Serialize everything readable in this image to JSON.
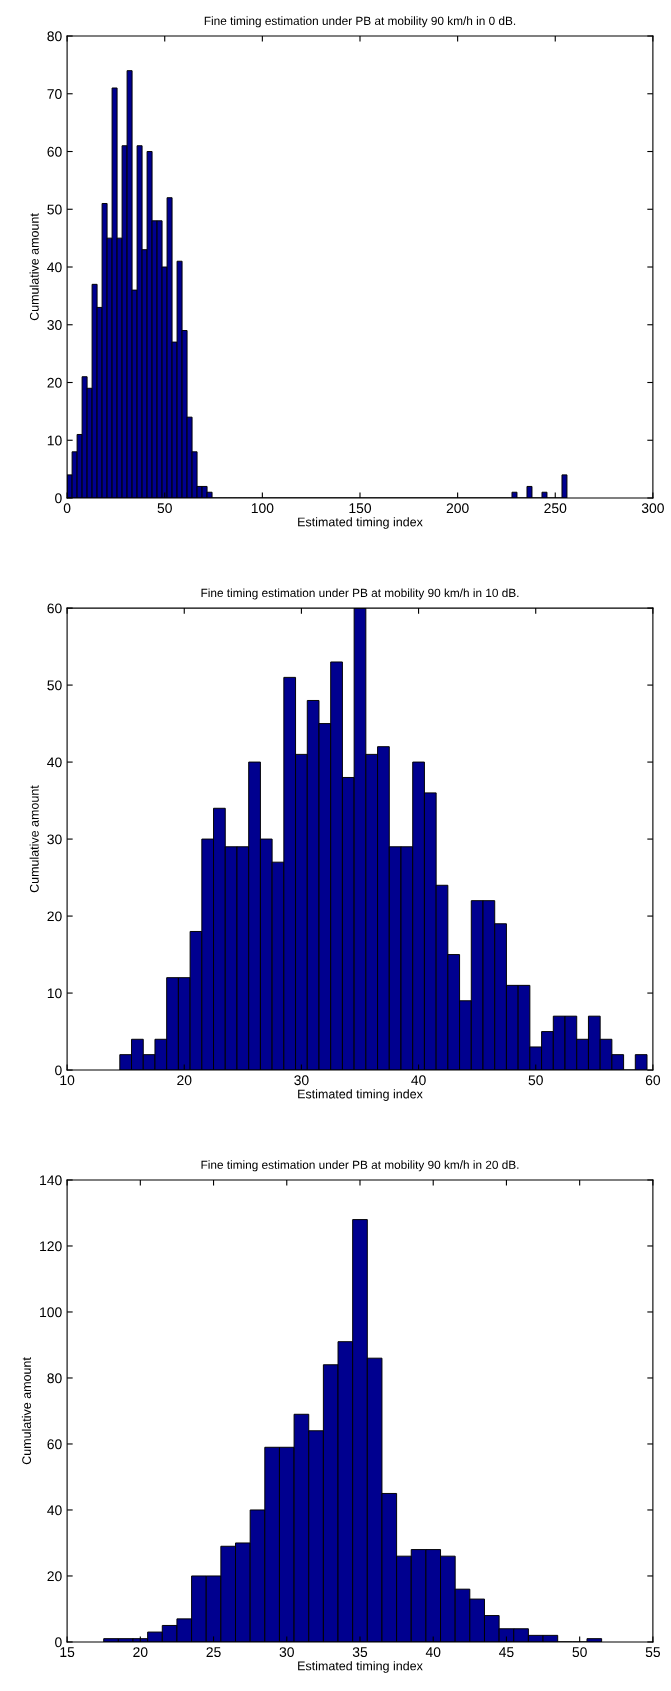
{
  "chart_data": [
    {
      "type": "histogram",
      "title": "Fine timing estimation under PB at mobility 90 km/h in 0 dB.",
      "xlabel": "Estimated timing index",
      "ylabel": "Cumulative amount",
      "color": "#00008f",
      "grid": false,
      "xlim": [
        0,
        300
      ],
      "xticks": [
        0,
        50,
        100,
        150,
        200,
        250,
        300
      ],
      "ylim": [
        0,
        80
      ],
      "yticks": [
        0,
        10,
        20,
        30,
        40,
        50,
        60,
        70,
        80
      ],
      "bins": [
        0,
        2.56,
        5.12,
        7.68,
        10.24,
        12.8,
        15.36,
        17.92,
        20.48,
        23.04,
        25.6,
        28.16,
        30.72,
        33.28,
        35.84,
        38.4,
        40.96,
        43.52,
        46.08,
        48.64,
        51.2,
        53.76,
        56.32,
        58.88,
        61.44,
        64,
        66.56,
        69.12,
        71.68,
        74.24,
        76.8,
        79.36,
        81.92,
        84.48,
        87.04,
        89.6,
        92.16,
        94.72,
        97.28,
        99.84,
        102.4,
        104.96,
        107.52,
        110.08,
        112.64,
        115.2,
        117.76,
        120.32,
        122.88,
        125.44,
        128,
        130.56,
        133.12,
        135.68,
        138.24,
        140.8,
        143.36,
        145.92,
        148.48,
        151.04,
        153.6,
        156.16,
        158.72,
        161.28,
        163.84,
        166.4,
        168.96,
        171.52,
        174.08,
        176.64,
        179.2,
        181.76,
        184.32,
        186.88,
        189.44,
        192,
        194.56,
        197.12,
        199.68,
        202.24,
        204.8,
        207.36,
        209.92,
        212.48,
        215.04,
        217.6,
        220.16,
        222.72,
        225.28,
        227.84,
        230.4,
        232.96,
        235.52,
        238.08,
        240.64,
        243.2,
        245.76,
        248.32,
        250.88,
        253.44,
        256
      ],
      "values": [
        4,
        8,
        11,
        21,
        19,
        37,
        33,
        51,
        45,
        71,
        45,
        61,
        74,
        36,
        61,
        43,
        60,
        48,
        48,
        40,
        52,
        27,
        41,
        29,
        14,
        8,
        2,
        2,
        1,
        0,
        0,
        0,
        0,
        0,
        0,
        0,
        0,
        0,
        0,
        0,
        0,
        0,
        0,
        0,
        0,
        0,
        0,
        0,
        0,
        0,
        0,
        0,
        0,
        0,
        0,
        0,
        0,
        0,
        0,
        0,
        0,
        0,
        0,
        0,
        0,
        0,
        0,
        0,
        0,
        0,
        0,
        0,
        0,
        0,
        0,
        0,
        0,
        0,
        0,
        0,
        0,
        0,
        0,
        0,
        0,
        0,
        0,
        0,
        0,
        1,
        0,
        0,
        2,
        0,
        0,
        1,
        0,
        0,
        0,
        4
      ]
    },
    {
      "type": "histogram",
      "title": "Fine timing estimation under PB at mobility 90 km/h in 10 dB.",
      "xlabel": "Estimated timing index",
      "ylabel": "Cumulative amount",
      "color": "#00008f",
      "grid": false,
      "xlim": [
        10,
        60
      ],
      "xticks": [
        10,
        20,
        30,
        40,
        50,
        60
      ],
      "ylim": [
        0,
        60
      ],
      "yticks": [
        0,
        10,
        20,
        30,
        40,
        50,
        60
      ],
      "bins": [
        14.5,
        15.5,
        16.5,
        17.5,
        18.5,
        19.5,
        20.5,
        21.5,
        22.5,
        23.5,
        24.5,
        25.5,
        26.5,
        27.5,
        28.5,
        29.5,
        30.5,
        31.5,
        32.5,
        33.5,
        34.5,
        35.5,
        36.5,
        37.5,
        38.5,
        39.5,
        40.5,
        41.5,
        42.5,
        43.5,
        44.5,
        45.5,
        46.5,
        47.5,
        48.5,
        49.5,
        50.5,
        51.5,
        52.5,
        53.5,
        54.5,
        55.5,
        56.5,
        57.5,
        58.5,
        59.5
      ],
      "values": [
        2,
        4,
        2,
        4,
        12,
        12,
        18,
        30,
        34,
        29,
        29,
        40,
        30,
        27,
        51,
        41,
        48,
        45,
        53,
        38,
        60,
        41,
        42,
        29,
        29,
        40,
        36,
        24,
        15,
        9,
        22,
        22,
        19,
        11,
        11,
        3,
        5,
        7,
        7,
        4,
        7,
        4,
        2,
        0,
        2
      ]
    },
    {
      "type": "histogram",
      "title": "Fine timing estimation under PB at mobility 90 km/h in 20 dB.",
      "xlabel": "Estimated timing index",
      "ylabel": "Cumulative amount",
      "color": "#00008f",
      "grid": false,
      "xlim": [
        15,
        55
      ],
      "xticks": [
        15,
        20,
        25,
        30,
        35,
        40,
        45,
        50,
        55
      ],
      "ylim": [
        0,
        140
      ],
      "yticks": [
        0,
        20,
        40,
        60,
        80,
        100,
        120,
        140
      ],
      "bins": [
        17.5,
        18.5,
        19.5,
        20.5,
        21.5,
        22.5,
        23.5,
        24.5,
        25.5,
        26.5,
        27.5,
        28.5,
        29.5,
        30.5,
        31.5,
        32.5,
        33.5,
        34.5,
        35.5,
        36.5,
        37.5,
        38.5,
        39.5,
        40.5,
        41.5,
        42.5,
        43.5,
        44.5,
        45.5,
        46.5,
        47.5,
        48.5,
        49.5,
        50.5,
        51.5
      ],
      "values": [
        1,
        1,
        1,
        3,
        5,
        7,
        20,
        20,
        29,
        30,
        40,
        59,
        59,
        69,
        64,
        84,
        91,
        128,
        86,
        45,
        26,
        28,
        28,
        26,
        16,
        13,
        8,
        4,
        4,
        2,
        2,
        0,
        0,
        1
      ]
    }
  ]
}
